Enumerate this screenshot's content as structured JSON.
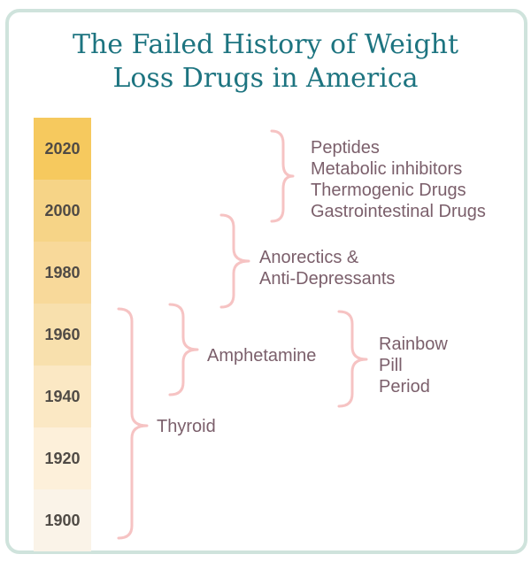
{
  "title": {
    "line1": "The Failed History of Weight",
    "line2": "Loss Drugs in America"
  },
  "timeline": {
    "years": [
      {
        "label": "2020",
        "color": "#f6c95e"
      },
      {
        "label": "2000",
        "color": "#f6d487"
      },
      {
        "label": "1980",
        "color": "#f8d99a"
      },
      {
        "label": "1960",
        "color": "#f8e0ad"
      },
      {
        "label": "1940",
        "color": "#fbe8c4"
      },
      {
        "label": "1920",
        "color": "#fdf0da"
      },
      {
        "label": "1900",
        "color": "#faf3e8"
      }
    ]
  },
  "eras": {
    "peptides": [
      "Peptides",
      "Metabolic inhibitors",
      "Thermogenic Drugs",
      "Gastrointestinal Drugs"
    ],
    "anorectics": [
      "Anorectics &",
      "Anti-Depressants"
    ],
    "amphetamine": [
      "Amphetamine"
    ],
    "rainbow": [
      "Rainbow",
      "Pill",
      "Period"
    ],
    "thyroid": [
      "Thyroid"
    ]
  },
  "colors": {
    "title": "#1d7480",
    "frame": "#cfe3dc",
    "bracket": "#f6c3c3",
    "label": "#7b5f6b"
  }
}
